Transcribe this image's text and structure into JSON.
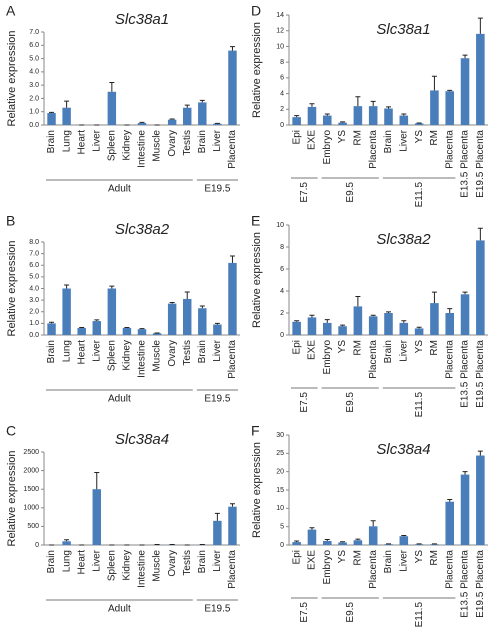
{
  "chart_data": [
    {
      "type": "bar",
      "panel": "A",
      "title": "Slc38a1",
      "ylabel": "Relative expression",
      "color": "#4a7ebb",
      "groups": [
        {
          "label": "Adult",
          "categories": [
            "Brain",
            "Lung",
            "Heart",
            "Liver",
            "Spleen",
            "Kidney",
            "Intestine",
            "Muscle",
            "Ovary",
            "Testis"
          ]
        },
        {
          "label": "E19.5",
          "categories": [
            "Brain",
            "Liver",
            "Placenta"
          ]
        }
      ],
      "values": [
        0.9,
        1.3,
        0,
        0,
        2.5,
        0,
        0.15,
        0,
        0.4,
        1.3,
        1.7,
        0.1,
        5.6
      ],
      "errors": [
        0.05,
        0.5,
        0,
        0,
        0.7,
        0,
        0.05,
        0,
        0.05,
        0.2,
        0.15,
        0.02,
        0.3
      ],
      "ylim": [
        0,
        7
      ],
      "yticks": [
        {
          "value": 0,
          "label": "0.0"
        },
        {
          "value": 1,
          "label": "1.0"
        },
        {
          "value": 2,
          "label": "2.0"
        },
        {
          "value": 3,
          "label": "3.0"
        },
        {
          "value": 4,
          "label": "4.0"
        },
        {
          "value": 5,
          "label": "5.0"
        },
        {
          "value": 6,
          "label": "6.0"
        },
        {
          "value": 7,
          "label": "7.0"
        }
      ]
    },
    {
      "type": "bar",
      "panel": "B",
      "title": "Slc38a2",
      "ylabel": "Relative expression",
      "color": "#4a7ebb",
      "groups": [
        {
          "label": "Adult",
          "categories": [
            "Brain",
            "Lung",
            "Heart",
            "Liver",
            "Spleen",
            "Kidney",
            "Intestine",
            "Muscle",
            "Ovary",
            "Testis"
          ]
        },
        {
          "label": "E19.5",
          "categories": [
            "Brain",
            "Liver",
            "Placenta"
          ]
        }
      ],
      "values": [
        1.0,
        4.0,
        0.6,
        1.2,
        4.0,
        0.6,
        0.5,
        0.15,
        2.7,
        3.1,
        2.3,
        0.9,
        6.2
      ],
      "errors": [
        0.1,
        0.3,
        0.05,
        0.1,
        0.2,
        0.05,
        0.05,
        0.02,
        0.1,
        0.6,
        0.2,
        0.1,
        0.6
      ],
      "ylim": [
        0,
        8
      ],
      "yticks": [
        {
          "value": 0,
          "label": "0.0"
        },
        {
          "value": 1,
          "label": "1.0"
        },
        {
          "value": 2,
          "label": "2.0"
        },
        {
          "value": 3,
          "label": "3.0"
        },
        {
          "value": 4,
          "label": "4.0"
        },
        {
          "value": 5,
          "label": "5.0"
        },
        {
          "value": 6,
          "label": "6.0"
        },
        {
          "value": 7,
          "label": "7.0"
        },
        {
          "value": 8,
          "label": "8.0"
        }
      ]
    },
    {
      "type": "bar",
      "panel": "C",
      "title": "Slc38a4",
      "ylabel": "Relative expression",
      "color": "#4a7ebb",
      "groups": [
        {
          "label": "Adult",
          "categories": [
            "Brain",
            "Lung",
            "Heart",
            "Liver",
            "Spleen",
            "Kidney",
            "Intestine",
            "Muscle",
            "Ovary",
            "Testis"
          ]
        },
        {
          "label": "E19.5",
          "categories": [
            "Brain",
            "Liver",
            "Placenta"
          ]
        }
      ],
      "values": [
        0,
        100,
        0,
        1500,
        0,
        0,
        0,
        10,
        10,
        0,
        10,
        650,
        1030
      ],
      "errors": [
        0,
        40,
        0,
        450,
        0,
        0,
        0,
        5,
        5,
        0,
        5,
        200,
        80
      ],
      "ylim": [
        0,
        2500
      ],
      "yticks": [
        0,
        500,
        1000,
        1500,
        2000,
        2500
      ]
    },
    {
      "type": "bar",
      "panel": "D",
      "title": "Slc38a1",
      "ylabel": "Relative expression",
      "color": "#4a7ebb",
      "groups": [
        {
          "label": "E7.5",
          "categories": [
            "Epi",
            "EXE"
          ]
        },
        {
          "label": "E9.5",
          "categories": [
            "Embryo",
            "YS",
            "RM",
            "Placenta"
          ]
        },
        {
          "label": "E11.5",
          "categories": [
            "Brain",
            "Liver",
            "YS",
            "RM",
            "Placenta"
          ]
        },
        {
          "categories": [
            "E13.5 Placenta",
            "E19.5 Placenta"
          ]
        }
      ],
      "values": [
        1.0,
        2.3,
        1.2,
        0.3,
        2.4,
        2.4,
        2.1,
        1.2,
        0.2,
        4.4,
        4.3,
        8.5,
        11.6
      ],
      "errors": [
        0.2,
        0.4,
        0.2,
        0.1,
        1.2,
        0.6,
        0.2,
        0.2,
        0.05,
        1.8,
        0.1,
        0.4,
        2.0
      ],
      "ylim": [
        0,
        14
      ],
      "yticks": [
        0,
        2,
        4,
        6,
        8,
        10,
        12,
        14
      ]
    },
    {
      "type": "bar",
      "panel": "E",
      "title": "Slc38a2",
      "ylabel": "Relative expression",
      "color": "#4a7ebb",
      "groups": [
        {
          "label": "E7.5",
          "categories": [
            "Epi",
            "EXE"
          ]
        },
        {
          "label": "E9.5",
          "categories": [
            "Embryo",
            "YS",
            "RM",
            "Placenta"
          ]
        },
        {
          "label": "E11.5",
          "categories": [
            "Brain",
            "Liver",
            "YS",
            "RM",
            "Placenta"
          ]
        },
        {
          "categories": [
            "E13.5 Placenta",
            "E19.5 Placenta"
          ]
        }
      ],
      "values": [
        1.2,
        1.6,
        1.1,
        0.8,
        2.6,
        1.7,
        2.0,
        1.1,
        0.6,
        2.9,
        2.0,
        3.7,
        8.6
      ],
      "errors": [
        0.1,
        0.2,
        0.3,
        0.1,
        0.9,
        0.1,
        0.1,
        0.2,
        0.1,
        1.0,
        0.4,
        0.2,
        1.1
      ],
      "ylim": [
        0,
        10
      ],
      "yticks": [
        0,
        2,
        4,
        6,
        8,
        10
      ]
    },
    {
      "type": "bar",
      "panel": "F",
      "title": "Slc38a4",
      "ylabel": "Relative expression",
      "color": "#4a7ebb",
      "groups": [
        {
          "label": "E7.5",
          "categories": [
            "Epi",
            "EXE"
          ]
        },
        {
          "label": "E9.5",
          "categories": [
            "Embryo",
            "YS",
            "RM",
            "Placenta"
          ]
        },
        {
          "label": "E11.5",
          "categories": [
            "Brain",
            "Liver",
            "YS",
            "RM",
            "Placenta"
          ]
        },
        {
          "categories": [
            "E13.5 Placenta",
            "E19.5 Placenta"
          ]
        }
      ],
      "values": [
        0.8,
        4.2,
        1.1,
        0.7,
        1.3,
        5.1,
        0.2,
        2.4,
        0.2,
        0.2,
        11.8,
        19.2,
        24.4
      ],
      "errors": [
        0.3,
        0.5,
        0.4,
        0.2,
        0.3,
        1.5,
        0.1,
        0.2,
        0.1,
        0.1,
        0.6,
        0.8,
        1.2
      ],
      "ylim": [
        0,
        30
      ],
      "yticks": [
        0,
        5,
        10,
        15,
        20,
        25,
        30
      ]
    }
  ]
}
